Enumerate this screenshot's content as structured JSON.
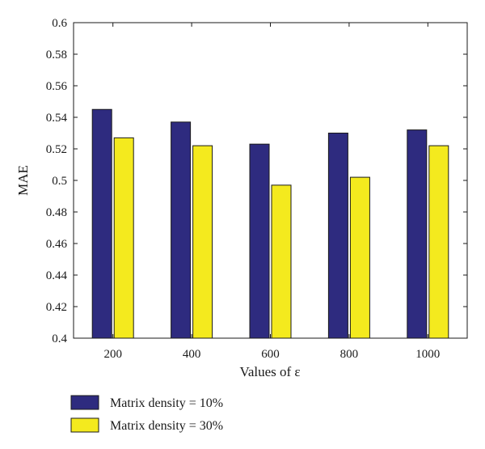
{
  "chart_data": {
    "type": "bar",
    "title": "",
    "xlabel": "Values of ε",
    "ylabel": "MAE",
    "categories": [
      "200",
      "400",
      "600",
      "800",
      "1000"
    ],
    "ylim": [
      0.4,
      0.6
    ],
    "yticks": [
      "0.4",
      "0.42",
      "0.44",
      "0.46",
      "0.48",
      "0.5",
      "0.52",
      "0.54",
      "0.56",
      "0.58",
      "0.6"
    ],
    "grid": false,
    "legend_position": "bottom-left, below chart",
    "series": [
      {
        "name": "Matrix density = 10%",
        "color": "#2e2b7f",
        "values": [
          0.545,
          0.537,
          0.523,
          0.53,
          0.532
        ]
      },
      {
        "name": "Matrix density = 30%",
        "color": "#f4ea1e",
        "values": [
          0.527,
          0.522,
          0.497,
          0.502,
          0.522
        ]
      }
    ]
  }
}
